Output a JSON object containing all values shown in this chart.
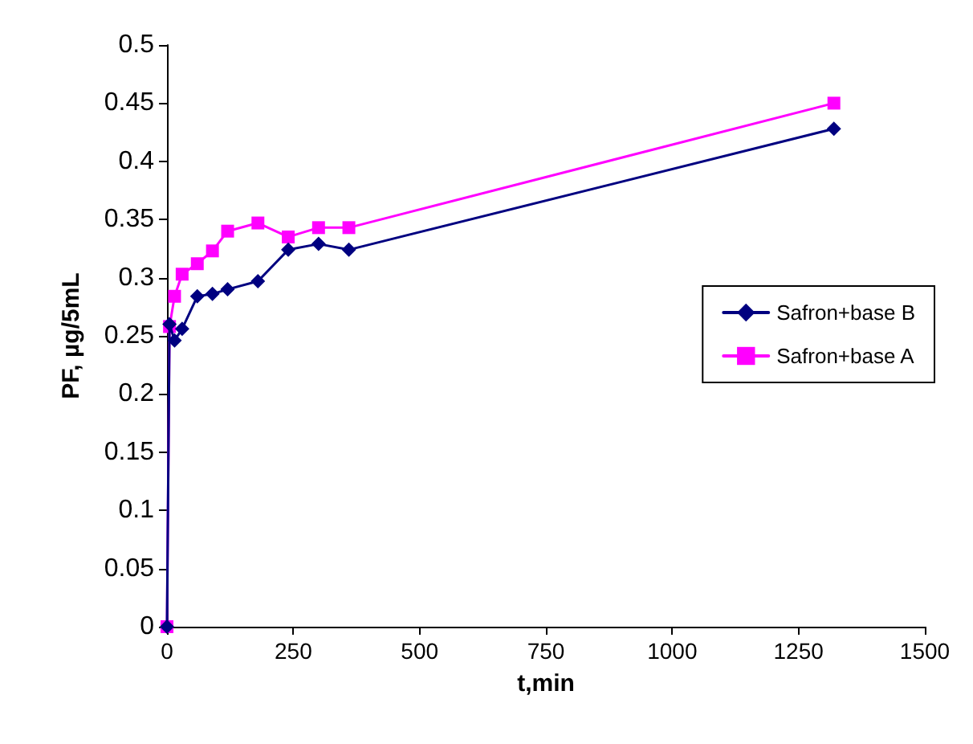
{
  "chart_data": {
    "type": "line",
    "xlabel": "t,min",
    "ylabel": "PF, µg/5mL",
    "xlim": [
      0,
      1500
    ],
    "xticks": [
      0,
      250,
      500,
      750,
      1000,
      1250,
      1500
    ],
    "ylim": [
      0,
      0.5
    ],
    "yticks": [
      0,
      0.05,
      0.1,
      0.15,
      0.2,
      0.25,
      0.3,
      0.35,
      0.4,
      0.45,
      0.5
    ],
    "grid": false,
    "legend": "right",
    "line_style": "solid",
    "series": [
      {
        "name": "Safron+base B",
        "color": "#000080",
        "marker": "diamond",
        "x": [
          0,
          5,
          15,
          30,
          60,
          90,
          120,
          180,
          240,
          300,
          360,
          1320
        ],
        "values": [
          0,
          0.26,
          0.246,
          0.256,
          0.284,
          0.286,
          0.29,
          0.297,
          0.324,
          0.329,
          0.324,
          0.428
        ]
      },
      {
        "name": "Safron+base A",
        "color": "#ff00ff",
        "marker": "square",
        "x": [
          0,
          5,
          15,
          30,
          60,
          90,
          120,
          180,
          240,
          300,
          360,
          1320
        ],
        "values": [
          0,
          0.258,
          0.284,
          0.303,
          0.312,
          0.323,
          0.34,
          0.347,
          0.335,
          0.343,
          0.343,
          0.45
        ]
      }
    ]
  }
}
